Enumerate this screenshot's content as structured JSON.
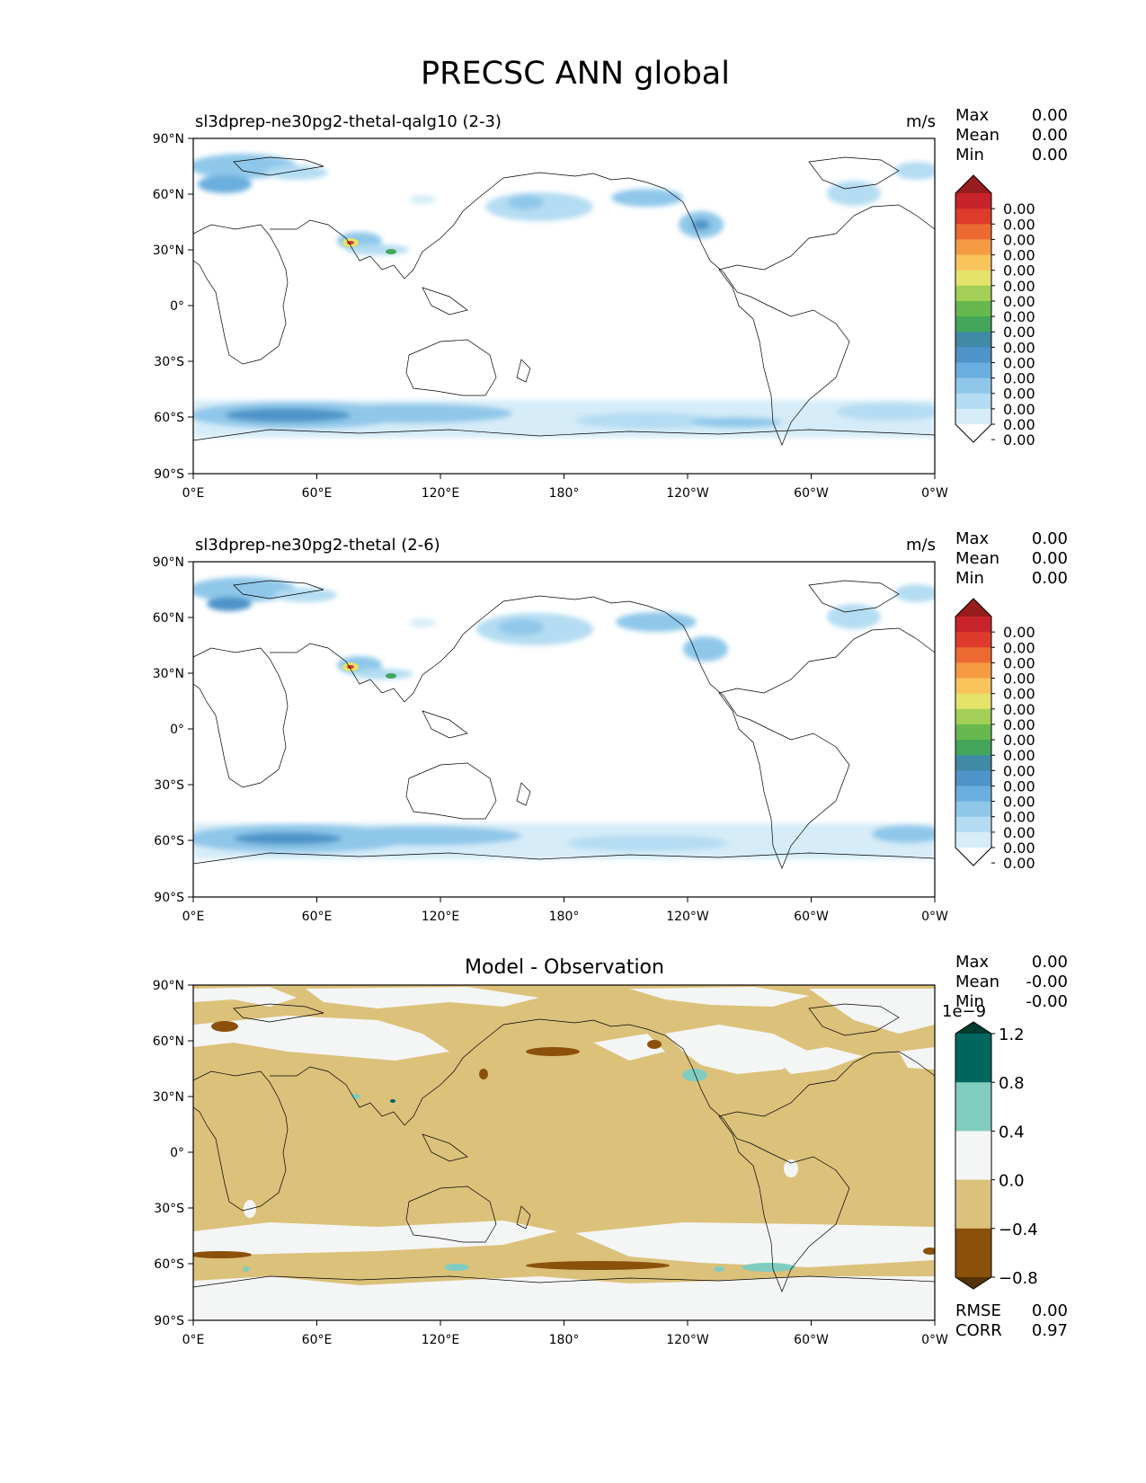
{
  "figure": {
    "title": "PRECSC ANN global"
  },
  "axes": {
    "lat_ticks": [
      "90°N",
      "60°N",
      "30°N",
      "0°",
      "30°S",
      "60°S",
      "90°S"
    ],
    "lon_ticks": [
      "0°E",
      "60°E",
      "120°E",
      "180°",
      "120°W",
      "60°W",
      "0°W"
    ]
  },
  "colors": {
    "precip_levels": [
      "#ffffff",
      "#d6ecf8",
      "#b4dcf2",
      "#8fc7ea",
      "#6aaedf",
      "#4d94c9",
      "#3f8aa7",
      "#43a65c",
      "#67b94e",
      "#a3cf56",
      "#e5e26a",
      "#f8c45b",
      "#f59b43",
      "#ec6a32",
      "#de3b2c",
      "#c6242a",
      "#971c1e"
    ],
    "diff_levels": [
      "#553108",
      "#8b510b",
      "#dcc17b",
      "#f4f5f5",
      "#80cdc0",
      "#01665e",
      "#003c30"
    ],
    "coast": "#000000"
  },
  "panels": [
    {
      "id": "test",
      "left_title": "sl3dprep-ne30pg2-thetal-qalg10 (2-3)",
      "right_title": "m/s",
      "center_title": "",
      "stats": [
        {
          "label": "Max",
          "value": "0.00"
        },
        {
          "label": "Mean",
          "value": "0.00"
        },
        {
          "label": "Min",
          "value": "0.00"
        }
      ],
      "colorbar_labels": [
        "0.00",
        "0.00",
        "0.00",
        "0.00",
        "0.00",
        "0.00",
        "0.00",
        "0.00",
        "0.00",
        "0.00",
        "0.00",
        "0.00",
        "0.00",
        "0.00",
        "0.00",
        "0.00"
      ],
      "colorbar_offset": ""
    },
    {
      "id": "ref",
      "left_title": "sl3dprep-ne30pg2-thetal (2-6)",
      "right_title": "m/s",
      "center_title": "",
      "stats": [
        {
          "label": "Max",
          "value": "0.00"
        },
        {
          "label": "Mean",
          "value": "0.00"
        },
        {
          "label": "Min",
          "value": "0.00"
        }
      ],
      "colorbar_labels": [
        "0.00",
        "0.00",
        "0.00",
        "0.00",
        "0.00",
        "0.00",
        "0.00",
        "0.00",
        "0.00",
        "0.00",
        "0.00",
        "0.00",
        "0.00",
        "0.00",
        "0.00",
        "0.00"
      ],
      "colorbar_offset": ""
    },
    {
      "id": "diff",
      "left_title": "",
      "right_title": "",
      "center_title": "Model - Observation",
      "stats": [
        {
          "label": "Max",
          "value": "0.00"
        },
        {
          "label": "Mean",
          "value": "-0.00"
        },
        {
          "label": "Min",
          "value": "-0.00"
        }
      ],
      "colorbar_labels": [
        "1.2",
        "0.8",
        "0.4",
        "0.0",
        "−0.4",
        "−0.8"
      ],
      "colorbar_offset": "1e−9",
      "bottom_stats": [
        {
          "label": "RMSE",
          "value": "0.00"
        },
        {
          "label": "CORR",
          "value": "0.97"
        }
      ]
    }
  ]
}
